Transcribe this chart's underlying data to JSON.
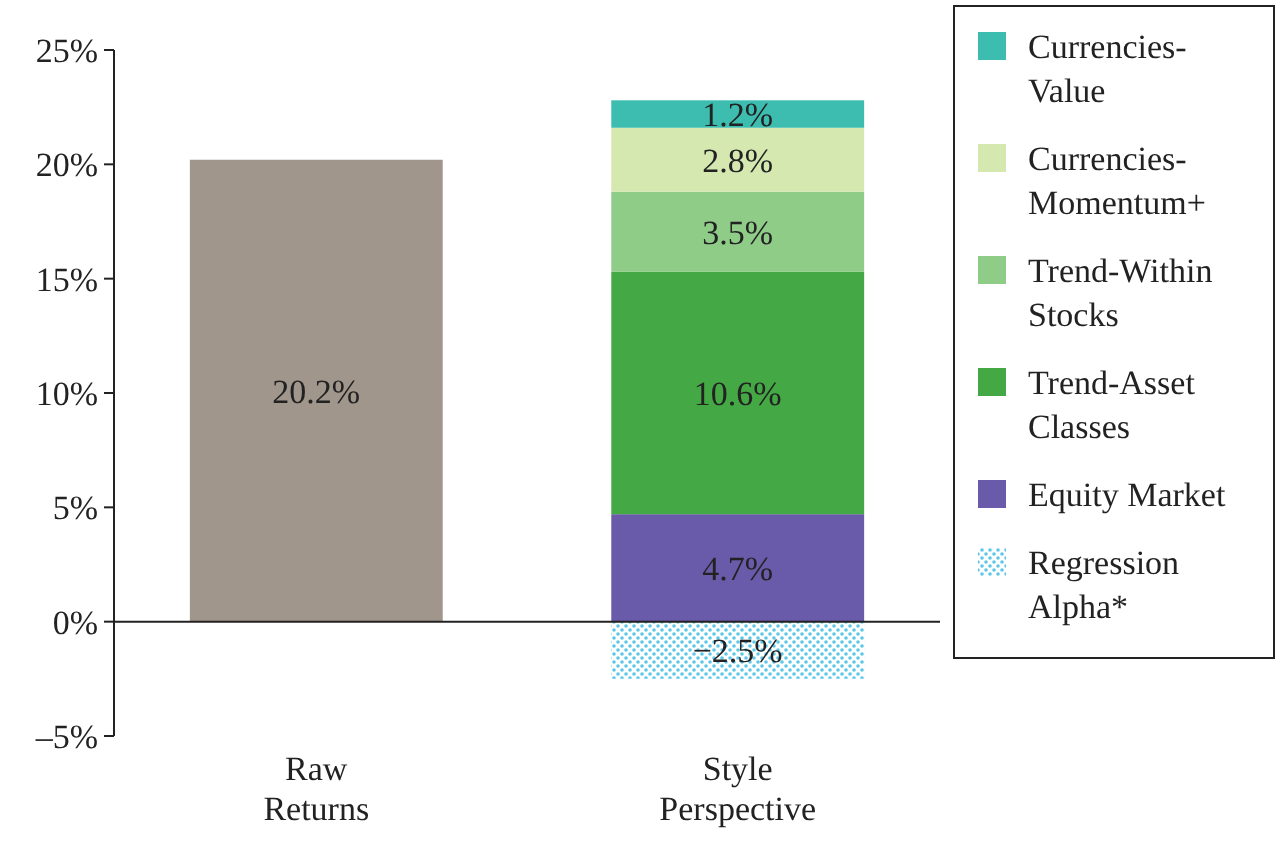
{
  "chart_data": {
    "type": "bar",
    "stacked": true,
    "categories": [
      "Raw Returns",
      "Style Perspective"
    ],
    "series": [
      {
        "color": "#a0968c",
        "values": [
          20.2,
          null
        ],
        "value_labels": [
          "20.2%",
          null
        ]
      },
      {
        "name": "Equity Market",
        "color": "#6a5aaa",
        "values": [
          null,
          4.7
        ],
        "value_labels": [
          null,
          "4.7%"
        ]
      },
      {
        "name": "Trend-Asset Classes",
        "color": "#44a845",
        "values": [
          null,
          10.6
        ],
        "value_labels": [
          null,
          "10.6%"
        ]
      },
      {
        "name": "Trend-Within Stocks",
        "color": "#8fcc88",
        "values": [
          null,
          3.5
        ],
        "value_labels": [
          null,
          "3.5%"
        ]
      },
      {
        "name": "Currencies-Momentum+",
        "color": "#d4e8b0",
        "values": [
          null,
          2.8
        ],
        "value_labels": [
          null,
          "2.8%"
        ]
      },
      {
        "name": "Currencies-Value",
        "color": "#3dbdb0",
        "values": [
          null,
          1.2
        ],
        "value_labels": [
          null,
          "1.2%"
        ]
      },
      {
        "name": "Regression Alpha*",
        "color": "#5bc8e8",
        "values": [
          null,
          -2.5
        ],
        "value_labels": [
          null,
          "−2.5%"
        ]
      }
    ],
    "ylim": [
      -5,
      25
    ],
    "yticks": [
      {
        "value": -5,
        "label": "–5%"
      },
      {
        "value": 0,
        "label": "0%"
      },
      {
        "value": 5,
        "label": "5%"
      },
      {
        "value": 10,
        "label": "10%"
      },
      {
        "value": 15,
        "label": "15%"
      },
      {
        "value": 20,
        "label": "20%"
      },
      {
        "value": 25,
        "label": "25%"
      }
    ],
    "legend": "right"
  }
}
